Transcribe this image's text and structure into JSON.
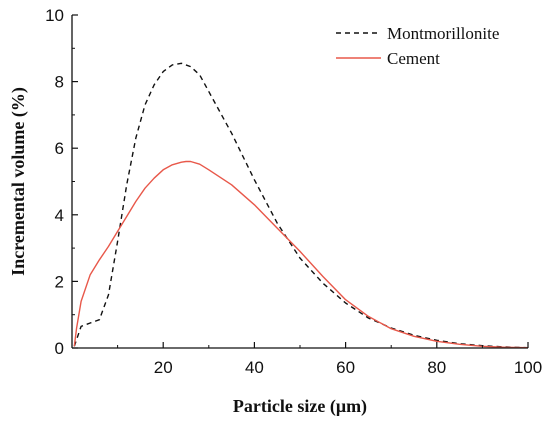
{
  "chart_data": {
    "type": "line",
    "xlabel": "Particle size (μm)",
    "ylabel": "Incremental volume (%)",
    "xlim": [
      0,
      100
    ],
    "ylim": [
      0,
      10
    ],
    "x_ticks": [
      20,
      40,
      60,
      80,
      100
    ],
    "y_ticks": [
      0,
      2,
      4,
      6,
      8,
      10
    ],
    "legend": "top-right",
    "grid": false,
    "series": [
      {
        "name": "Montmorillonite",
        "color": "#111111",
        "style": "dashed",
        "x": [
          0.5,
          2,
          4,
          6,
          8,
          10,
          12,
          14,
          16,
          18,
          20,
          22,
          24,
          26,
          28,
          30,
          35,
          40,
          45,
          50,
          55,
          60,
          65,
          70,
          75,
          80,
          85,
          90,
          95,
          100
        ],
        "y": [
          0.05,
          0.65,
          0.75,
          0.85,
          1.6,
          3.2,
          4.9,
          6.3,
          7.3,
          7.9,
          8.3,
          8.5,
          8.55,
          8.45,
          8.2,
          7.7,
          6.45,
          5.05,
          3.75,
          2.7,
          1.95,
          1.35,
          0.9,
          0.6,
          0.38,
          0.23,
          0.13,
          0.07,
          0.03,
          0.01
        ]
      },
      {
        "name": "Cement",
        "color": "#e8584a",
        "style": "solid",
        "x": [
          0.5,
          1,
          2,
          4,
          6,
          8,
          10,
          12,
          14,
          16,
          18,
          20,
          22,
          24,
          25,
          26,
          28,
          30,
          35,
          40,
          45,
          50,
          55,
          60,
          65,
          70,
          75,
          80,
          85,
          90,
          95,
          100
        ],
        "y": [
          0.05,
          0.6,
          1.4,
          2.2,
          2.65,
          3.05,
          3.5,
          3.95,
          4.4,
          4.8,
          5.1,
          5.35,
          5.5,
          5.58,
          5.6,
          5.6,
          5.52,
          5.35,
          4.9,
          4.3,
          3.6,
          2.9,
          2.15,
          1.45,
          0.95,
          0.58,
          0.35,
          0.2,
          0.11,
          0.05,
          0.02,
          0.01
        ]
      }
    ]
  }
}
